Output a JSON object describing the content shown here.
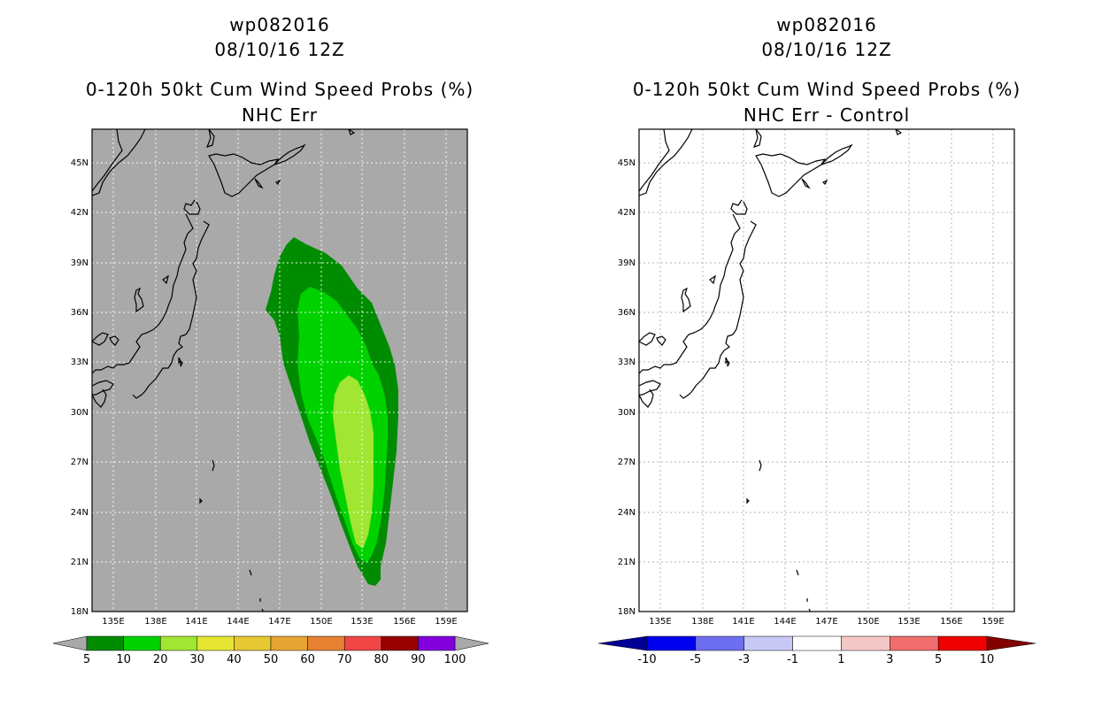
{
  "left_panel": {
    "storm_id": "wp082016",
    "datetime": "08/10/16 12Z",
    "product": "0-120h 50kt Cum Wind Speed Probs (%)",
    "subtitle": "NHC Err",
    "background_color": "#a9a9a9",
    "colorbar": {
      "colors": [
        "#008c00",
        "#00d200",
        "#a0e632",
        "#e6e632",
        "#e6c832",
        "#e6a532",
        "#e68232",
        "#f04646",
        "#960000",
        "#8200dc"
      ],
      "labels": [
        "5",
        "10",
        "20",
        "30",
        "40",
        "50",
        "60",
        "70",
        "80",
        "90",
        "100"
      ]
    }
  },
  "right_panel": {
    "storm_id": "wp082016",
    "datetime": "08/10/16 12Z",
    "product": "0-120h 50kt Cum Wind Speed Probs (%)",
    "subtitle": "NHC Err - Control",
    "background_color": "#ffffff",
    "colorbar": {
      "colors": [
        "#000096",
        "#0000f0",
        "#6e6ef0",
        "#c8c8f5",
        "#ffffff",
        "#f5c8c8",
        "#f06e6e",
        "#f00000",
        "#820000"
      ],
      "labels": [
        "-10",
        "-5",
        "-3",
        "-1",
        "1",
        "3",
        "5",
        "10"
      ]
    }
  },
  "axes": {
    "lon_labels": [
      "135E",
      "138E",
      "141E",
      "144E",
      "147E",
      "150E",
      "153E",
      "156E",
      "159E"
    ],
    "lat_labels": [
      "45N",
      "42N",
      "39N",
      "36N",
      "33N",
      "30N",
      "27N",
      "24N",
      "21N",
      "18N"
    ]
  }
}
